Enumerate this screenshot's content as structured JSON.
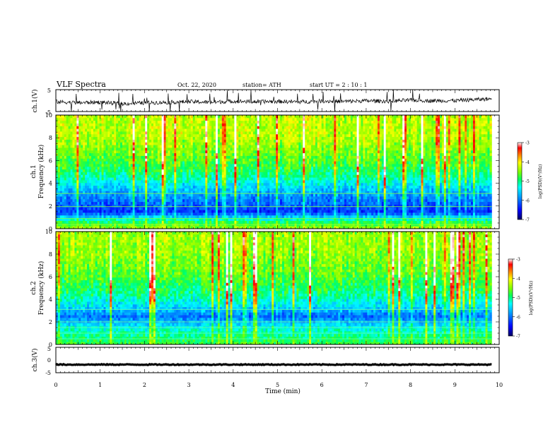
{
  "header": {
    "title": "VLF Spectra",
    "date": "Oct. 22, 2020",
    "station": "station= ATH",
    "start": "start  UT  =   2 : 10 : 1"
  },
  "colors": {
    "colormap": [
      "#000060",
      "#0000ff",
      "#00a0ff",
      "#00ffff",
      "#00ff60",
      "#80ff00",
      "#ffff00",
      "#ff8000",
      "#ff0000",
      "#ffffff"
    ],
    "trace": "#000000"
  },
  "chart_data": [
    {
      "type": "line",
      "id": "ch1v",
      "ylabel": "ch.1(V)",
      "ylim": [
        -5,
        5
      ],
      "yticks": [
        "5",
        "-5"
      ],
      "xlim": [
        0,
        10
      ],
      "x": [
        0,
        0.5,
        1,
        1.5,
        2,
        2.5,
        3,
        3.5,
        4,
        4.5,
        5,
        5.5,
        6,
        6.5,
        7,
        7.5,
        8,
        8.5,
        9,
        9.5,
        9.83
      ],
      "y": [
        -0.5,
        -1.0,
        -0.7,
        -1.5,
        -1.0,
        -0.8,
        -0.5,
        -0.8,
        -0.3,
        -0.5,
        -0.4,
        -0.6,
        -0.2,
        -0.4,
        -0.1,
        -0.3,
        0.2,
        -0.1,
        0.0,
        0.5,
        0.8
      ]
    },
    {
      "type": "heatmap",
      "id": "ch1",
      "ylabel": "ch.1",
      "ylabel2": "Frequency (kHz)",
      "ylim": [
        0,
        10
      ],
      "yticks": [
        "0",
        "2",
        "4",
        "6",
        "8",
        "10"
      ],
      "xlim": [
        0,
        9.83
      ],
      "clim": [
        -7,
        -3
      ],
      "colorbar_label": "log(PSD)(V²/Hz)",
      "colorbar_ticks": [
        "-3",
        "-4",
        "-5",
        "-6",
        "-7"
      ],
      "freq_kHz": [
        0.2,
        0.7,
        1.5,
        2.5,
        3.5,
        4.5,
        5.5,
        6.5,
        7.5,
        8.5,
        9.5
      ],
      "mean_log_psd": [
        -4.5,
        -5.0,
        -6.3,
        -6.0,
        -5.6,
        -5.1,
        -4.8,
        -4.6,
        -4.4,
        -4.3,
        -4.3
      ]
    },
    {
      "type": "heatmap",
      "id": "ch2",
      "ylabel": "ch.2",
      "ylabel2": "Frequency (kHz)",
      "ylim": [
        0,
        10
      ],
      "yticks": [
        "0",
        "2",
        "4",
        "6",
        "8",
        "10"
      ],
      "xlim": [
        0,
        9.83
      ],
      "clim": [
        -7,
        -3
      ],
      "colorbar_label": "log(PSD)(V²/Hz)",
      "colorbar_ticks": [
        "-3",
        "-4",
        "-5",
        "-6",
        "-7"
      ],
      "freq_kHz": [
        0.2,
        0.7,
        1.5,
        2.5,
        3.5,
        4.5,
        5.5,
        6.5,
        7.5,
        8.5,
        9.5
      ],
      "mean_log_psd": [
        -4.8,
        -5.0,
        -5.3,
        -6.0,
        -5.4,
        -5.0,
        -4.8,
        -4.6,
        -4.5,
        -4.4,
        -4.4
      ]
    },
    {
      "type": "line",
      "id": "ch3v",
      "ylabel": "ch.3(V)",
      "ylim": [
        -5,
        5
      ],
      "yticks": [
        "5",
        "0",
        "-5"
      ],
      "xlim": [
        0,
        10
      ],
      "x": [
        0,
        9.83
      ],
      "y": [
        -1.8,
        -1.8
      ]
    }
  ],
  "xaxis": {
    "label": "Time (min)",
    "ticks": [
      "0",
      "1",
      "2",
      "3",
      "4",
      "5",
      "6",
      "7",
      "8",
      "9",
      "10"
    ],
    "range": [
      0,
      10
    ]
  }
}
